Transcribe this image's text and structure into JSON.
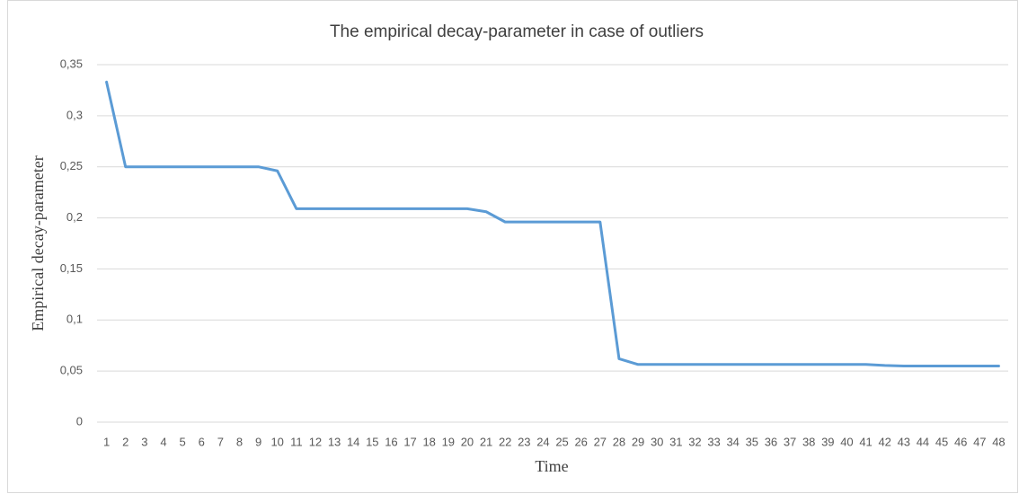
{
  "chart_data": {
    "type": "line",
    "title": "The empirical decay-parameter in case of outliers",
    "x_label": "Time",
    "y_label": "Empirical decay-parameter",
    "categories": [
      "1",
      "2",
      "3",
      "4",
      "5",
      "6",
      "7",
      "8",
      "9",
      "10",
      "11",
      "12",
      "13",
      "14",
      "15",
      "16",
      "17",
      "18",
      "19",
      "20",
      "21",
      "22",
      "23",
      "24",
      "25",
      "26",
      "27",
      "28",
      "29",
      "30",
      "31",
      "32",
      "33",
      "34",
      "35",
      "36",
      "37",
      "38",
      "39",
      "40",
      "41",
      "42",
      "43",
      "44",
      "45",
      "46",
      "47",
      "48"
    ],
    "series": [
      {
        "name": "Empirical decay-parameter",
        "color": "#5b9bd5",
        "values": [
          0.333,
          0.25,
          0.25,
          0.25,
          0.25,
          0.25,
          0.25,
          0.25,
          0.25,
          0.246,
          0.209,
          0.209,
          0.209,
          0.209,
          0.209,
          0.209,
          0.209,
          0.209,
          0.209,
          0.209,
          0.206,
          0.196,
          0.196,
          0.196,
          0.196,
          0.196,
          0.196,
          0.062,
          0.0565,
          0.0565,
          0.0565,
          0.0565,
          0.0565,
          0.0565,
          0.0565,
          0.0565,
          0.0565,
          0.0565,
          0.0565,
          0.0565,
          0.0565,
          0.0555,
          0.055,
          0.055,
          0.055,
          0.055,
          0.055,
          0.055
        ]
      }
    ],
    "ylim": [
      0,
      0.35
    ],
    "yticks": [
      0,
      {
        "value": 0.05,
        "label": "0,05"
      },
      {
        "value": 0.1,
        "label": "0,1"
      },
      {
        "value": 0.15,
        "label": "0,15"
      },
      {
        "value": 0.2,
        "label": "0,2"
      },
      {
        "value": 0.25,
        "label": "0,25"
      },
      {
        "value": 0.3,
        "label": "0,3"
      },
      {
        "value": 0.35,
        "label": "0,35"
      }
    ],
    "grid": true
  }
}
